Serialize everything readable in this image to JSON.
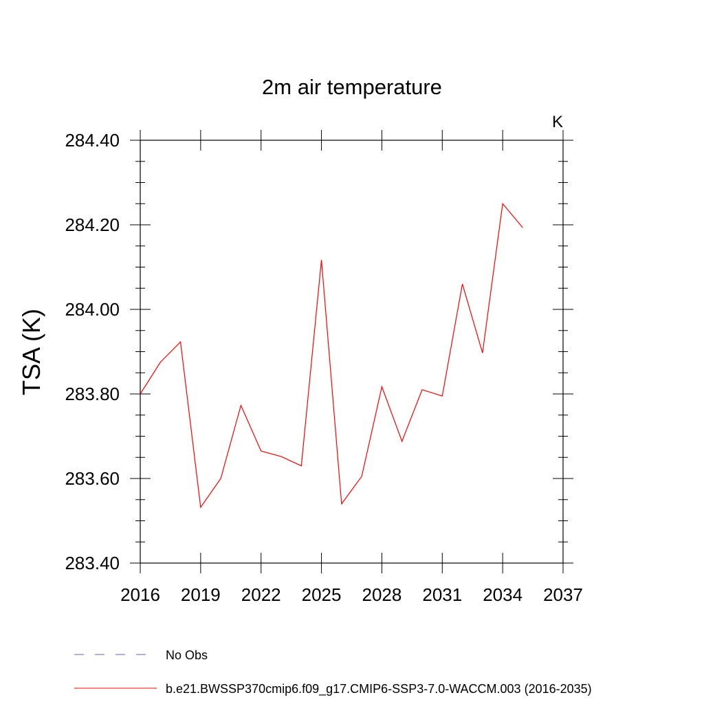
{
  "chart_data": {
    "type": "line",
    "title": "2m air temperature",
    "units_label": "K",
    "xlabel": "",
    "ylabel": "TSA  (K)",
    "xlim": [
      2016,
      2037
    ],
    "ylim": [
      283.4,
      284.4
    ],
    "x_ticks": [
      "2016",
      "2019",
      "2022",
      "2025",
      "2028",
      "2031",
      "2034",
      "2037"
    ],
    "y_ticks": [
      "283.40",
      "283.60",
      "283.80",
      "284.00",
      "284.20",
      "284.40"
    ],
    "grid": false,
    "legend_position": "bottom",
    "series": [
      {
        "name": "b.e21.BWSSP370cmip6.f09_g17.CMIP6-SSP3-7.0-WACCM.003 (2016-2035)",
        "color": "#ff0000",
        "style": "solid",
        "x": [
          2016,
          2017,
          2018,
          2019,
          2020,
          2021,
          2022,
          2023,
          2024,
          2025,
          2026,
          2027,
          2028,
          2029,
          2030,
          2031,
          2032,
          2033,
          2034,
          2035
        ],
        "values": [
          283.8,
          283.875,
          283.923,
          283.532,
          283.6,
          283.773,
          283.665,
          283.652,
          283.63,
          284.117,
          283.54,
          283.605,
          283.817,
          283.688,
          283.81,
          283.795,
          284.06,
          283.897,
          284.25,
          284.193
        ]
      }
    ],
    "legend": [
      {
        "label": "No Obs",
        "color": "#6a5acd",
        "style": "dashed"
      },
      {
        "label": "b.e21.BWSSP370cmip6.f09_g17.CMIP6-SSP3-7.0-WACCM.003 (2016-2035)",
        "color": "#ff0000",
        "style": "solid"
      }
    ]
  }
}
